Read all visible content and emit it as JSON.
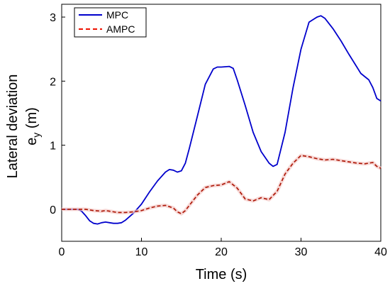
{
  "chart_data": {
    "type": "line",
    "xlabel": "Time (s)",
    "ylabel": "Lateral deviation",
    "ylabel_line2_main": "e",
    "ylabel_line2_sub": "y",
    "ylabel_line2_unit": " (m)",
    "xlim": [
      0,
      40
    ],
    "ylim": [
      -0.5,
      3.2
    ],
    "xticks": [
      0,
      10,
      20,
      30,
      40
    ],
    "yticks": [
      0,
      1,
      2,
      3
    ],
    "grid": false,
    "legend_position": "top-left",
    "series": [
      {
        "name": "MPC",
        "color": "#0000cc",
        "style": "solid",
        "x": [
          0,
          2,
          2.5,
          3,
          3.5,
          4,
          4.5,
          5,
          5.5,
          6,
          6.5,
          7,
          7.5,
          8,
          9,
          10,
          11,
          12,
          13,
          13.5,
          14,
          14.5,
          15,
          15.5,
          16,
          17,
          18,
          19,
          19.5,
          20,
          21,
          21.5,
          22,
          23,
          24,
          25,
          26,
          26.5,
          27,
          28,
          29,
          30,
          31,
          32,
          32.5,
          33,
          34,
          35,
          36,
          37,
          37.5,
          38,
          38.5,
          39,
          39.5,
          40
        ],
        "y": [
          0,
          0,
          -0.03,
          -0.1,
          -0.18,
          -0.22,
          -0.23,
          -0.21,
          -0.2,
          -0.21,
          -0.22,
          -0.22,
          -0.21,
          -0.17,
          -0.06,
          0.08,
          0.27,
          0.44,
          0.58,
          0.62,
          0.61,
          0.58,
          0.6,
          0.72,
          0.95,
          1.45,
          1.95,
          2.19,
          2.22,
          2.22,
          2.23,
          2.2,
          2.02,
          1.62,
          1.2,
          0.9,
          0.72,
          0.67,
          0.7,
          1.2,
          1.9,
          2.5,
          2.92,
          3.0,
          3.02,
          2.98,
          2.82,
          2.63,
          2.42,
          2.22,
          2.12,
          2.07,
          2.02,
          1.9,
          1.73,
          1.69
        ]
      },
      {
        "name": "AMPC",
        "color": "#aa1100",
        "style": "dashed",
        "x": [
          0,
          3,
          4,
          5,
          5.5,
          6,
          7,
          8,
          9,
          10,
          11,
          12,
          13,
          14,
          14.5,
          15,
          15.5,
          16,
          17,
          18,
          19,
          20,
          21,
          22,
          23,
          24,
          25,
          26,
          27,
          28,
          29,
          30,
          31,
          32,
          33,
          34,
          35,
          36,
          37,
          38,
          39,
          39.5,
          40
        ],
        "y": [
          0,
          0,
          -0.02,
          -0.03,
          -0.02,
          -0.03,
          -0.05,
          -0.05,
          -0.04,
          -0.02,
          0.02,
          0.05,
          0.06,
          0.02,
          -0.04,
          -0.07,
          -0.02,
          0.06,
          0.22,
          0.34,
          0.37,
          0.38,
          0.43,
          0.33,
          0.16,
          0.13,
          0.18,
          0.15,
          0.28,
          0.55,
          0.72,
          0.84,
          0.82,
          0.79,
          0.77,
          0.78,
          0.76,
          0.74,
          0.72,
          0.71,
          0.73,
          0.67,
          0.64
        ]
      }
    ]
  }
}
